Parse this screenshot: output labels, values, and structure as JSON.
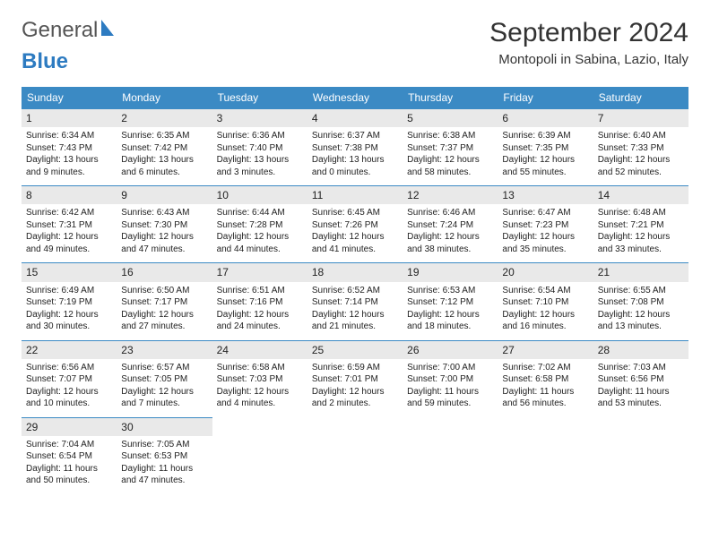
{
  "brand": {
    "part1": "General",
    "part2": "Blue"
  },
  "title": "September 2024",
  "location": "Montopoli in Sabina, Lazio, Italy",
  "colors": {
    "header_bg": "#3b8ac4",
    "header_text": "#ffffff",
    "daynum_bg": "#e9e9e9",
    "rule": "#3b8ac4",
    "brand_gray": "#555555",
    "brand_blue": "#2d7bc1",
    "page_bg": "#ffffff"
  },
  "typography": {
    "title_fontsize": 30,
    "location_fontsize": 15,
    "dayhead_fontsize": 12,
    "cell_fontsize": 10,
    "daynum_fontsize": 12
  },
  "weekdays": [
    "Sunday",
    "Monday",
    "Tuesday",
    "Wednesday",
    "Thursday",
    "Friday",
    "Saturday"
  ],
  "days": [
    {
      "n": "1",
      "sunrise": "6:34 AM",
      "sunset": "7:43 PM",
      "daylight": "13 hours and 9 minutes."
    },
    {
      "n": "2",
      "sunrise": "6:35 AM",
      "sunset": "7:42 PM",
      "daylight": "13 hours and 6 minutes."
    },
    {
      "n": "3",
      "sunrise": "6:36 AM",
      "sunset": "7:40 PM",
      "daylight": "13 hours and 3 minutes."
    },
    {
      "n": "4",
      "sunrise": "6:37 AM",
      "sunset": "7:38 PM",
      "daylight": "13 hours and 0 minutes."
    },
    {
      "n": "5",
      "sunrise": "6:38 AM",
      "sunset": "7:37 PM",
      "daylight": "12 hours and 58 minutes."
    },
    {
      "n": "6",
      "sunrise": "6:39 AM",
      "sunset": "7:35 PM",
      "daylight": "12 hours and 55 minutes."
    },
    {
      "n": "7",
      "sunrise": "6:40 AM",
      "sunset": "7:33 PM",
      "daylight": "12 hours and 52 minutes."
    },
    {
      "n": "8",
      "sunrise": "6:42 AM",
      "sunset": "7:31 PM",
      "daylight": "12 hours and 49 minutes."
    },
    {
      "n": "9",
      "sunrise": "6:43 AM",
      "sunset": "7:30 PM",
      "daylight": "12 hours and 47 minutes."
    },
    {
      "n": "10",
      "sunrise": "6:44 AM",
      "sunset": "7:28 PM",
      "daylight": "12 hours and 44 minutes."
    },
    {
      "n": "11",
      "sunrise": "6:45 AM",
      "sunset": "7:26 PM",
      "daylight": "12 hours and 41 minutes."
    },
    {
      "n": "12",
      "sunrise": "6:46 AM",
      "sunset": "7:24 PM",
      "daylight": "12 hours and 38 minutes."
    },
    {
      "n": "13",
      "sunrise": "6:47 AM",
      "sunset": "7:23 PM",
      "daylight": "12 hours and 35 minutes."
    },
    {
      "n": "14",
      "sunrise": "6:48 AM",
      "sunset": "7:21 PM",
      "daylight": "12 hours and 33 minutes."
    },
    {
      "n": "15",
      "sunrise": "6:49 AM",
      "sunset": "7:19 PM",
      "daylight": "12 hours and 30 minutes."
    },
    {
      "n": "16",
      "sunrise": "6:50 AM",
      "sunset": "7:17 PM",
      "daylight": "12 hours and 27 minutes."
    },
    {
      "n": "17",
      "sunrise": "6:51 AM",
      "sunset": "7:16 PM",
      "daylight": "12 hours and 24 minutes."
    },
    {
      "n": "18",
      "sunrise": "6:52 AM",
      "sunset": "7:14 PM",
      "daylight": "12 hours and 21 minutes."
    },
    {
      "n": "19",
      "sunrise": "6:53 AM",
      "sunset": "7:12 PM",
      "daylight": "12 hours and 18 minutes."
    },
    {
      "n": "20",
      "sunrise": "6:54 AM",
      "sunset": "7:10 PM",
      "daylight": "12 hours and 16 minutes."
    },
    {
      "n": "21",
      "sunrise": "6:55 AM",
      "sunset": "7:08 PM",
      "daylight": "12 hours and 13 minutes."
    },
    {
      "n": "22",
      "sunrise": "6:56 AM",
      "sunset": "7:07 PM",
      "daylight": "12 hours and 10 minutes."
    },
    {
      "n": "23",
      "sunrise": "6:57 AM",
      "sunset": "7:05 PM",
      "daylight": "12 hours and 7 minutes."
    },
    {
      "n": "24",
      "sunrise": "6:58 AM",
      "sunset": "7:03 PM",
      "daylight": "12 hours and 4 minutes."
    },
    {
      "n": "25",
      "sunrise": "6:59 AM",
      "sunset": "7:01 PM",
      "daylight": "12 hours and 2 minutes."
    },
    {
      "n": "26",
      "sunrise": "7:00 AM",
      "sunset": "7:00 PM",
      "daylight": "11 hours and 59 minutes."
    },
    {
      "n": "27",
      "sunrise": "7:02 AM",
      "sunset": "6:58 PM",
      "daylight": "11 hours and 56 minutes."
    },
    {
      "n": "28",
      "sunrise": "7:03 AM",
      "sunset": "6:56 PM",
      "daylight": "11 hours and 53 minutes."
    },
    {
      "n": "29",
      "sunrise": "7:04 AM",
      "sunset": "6:54 PM",
      "daylight": "11 hours and 50 minutes."
    },
    {
      "n": "30",
      "sunrise": "7:05 AM",
      "sunset": "6:53 PM",
      "daylight": "11 hours and 47 minutes."
    }
  ],
  "labels": {
    "sunrise_prefix": "Sunrise: ",
    "sunset_prefix": "Sunset: ",
    "daylight_prefix": "Daylight: "
  }
}
